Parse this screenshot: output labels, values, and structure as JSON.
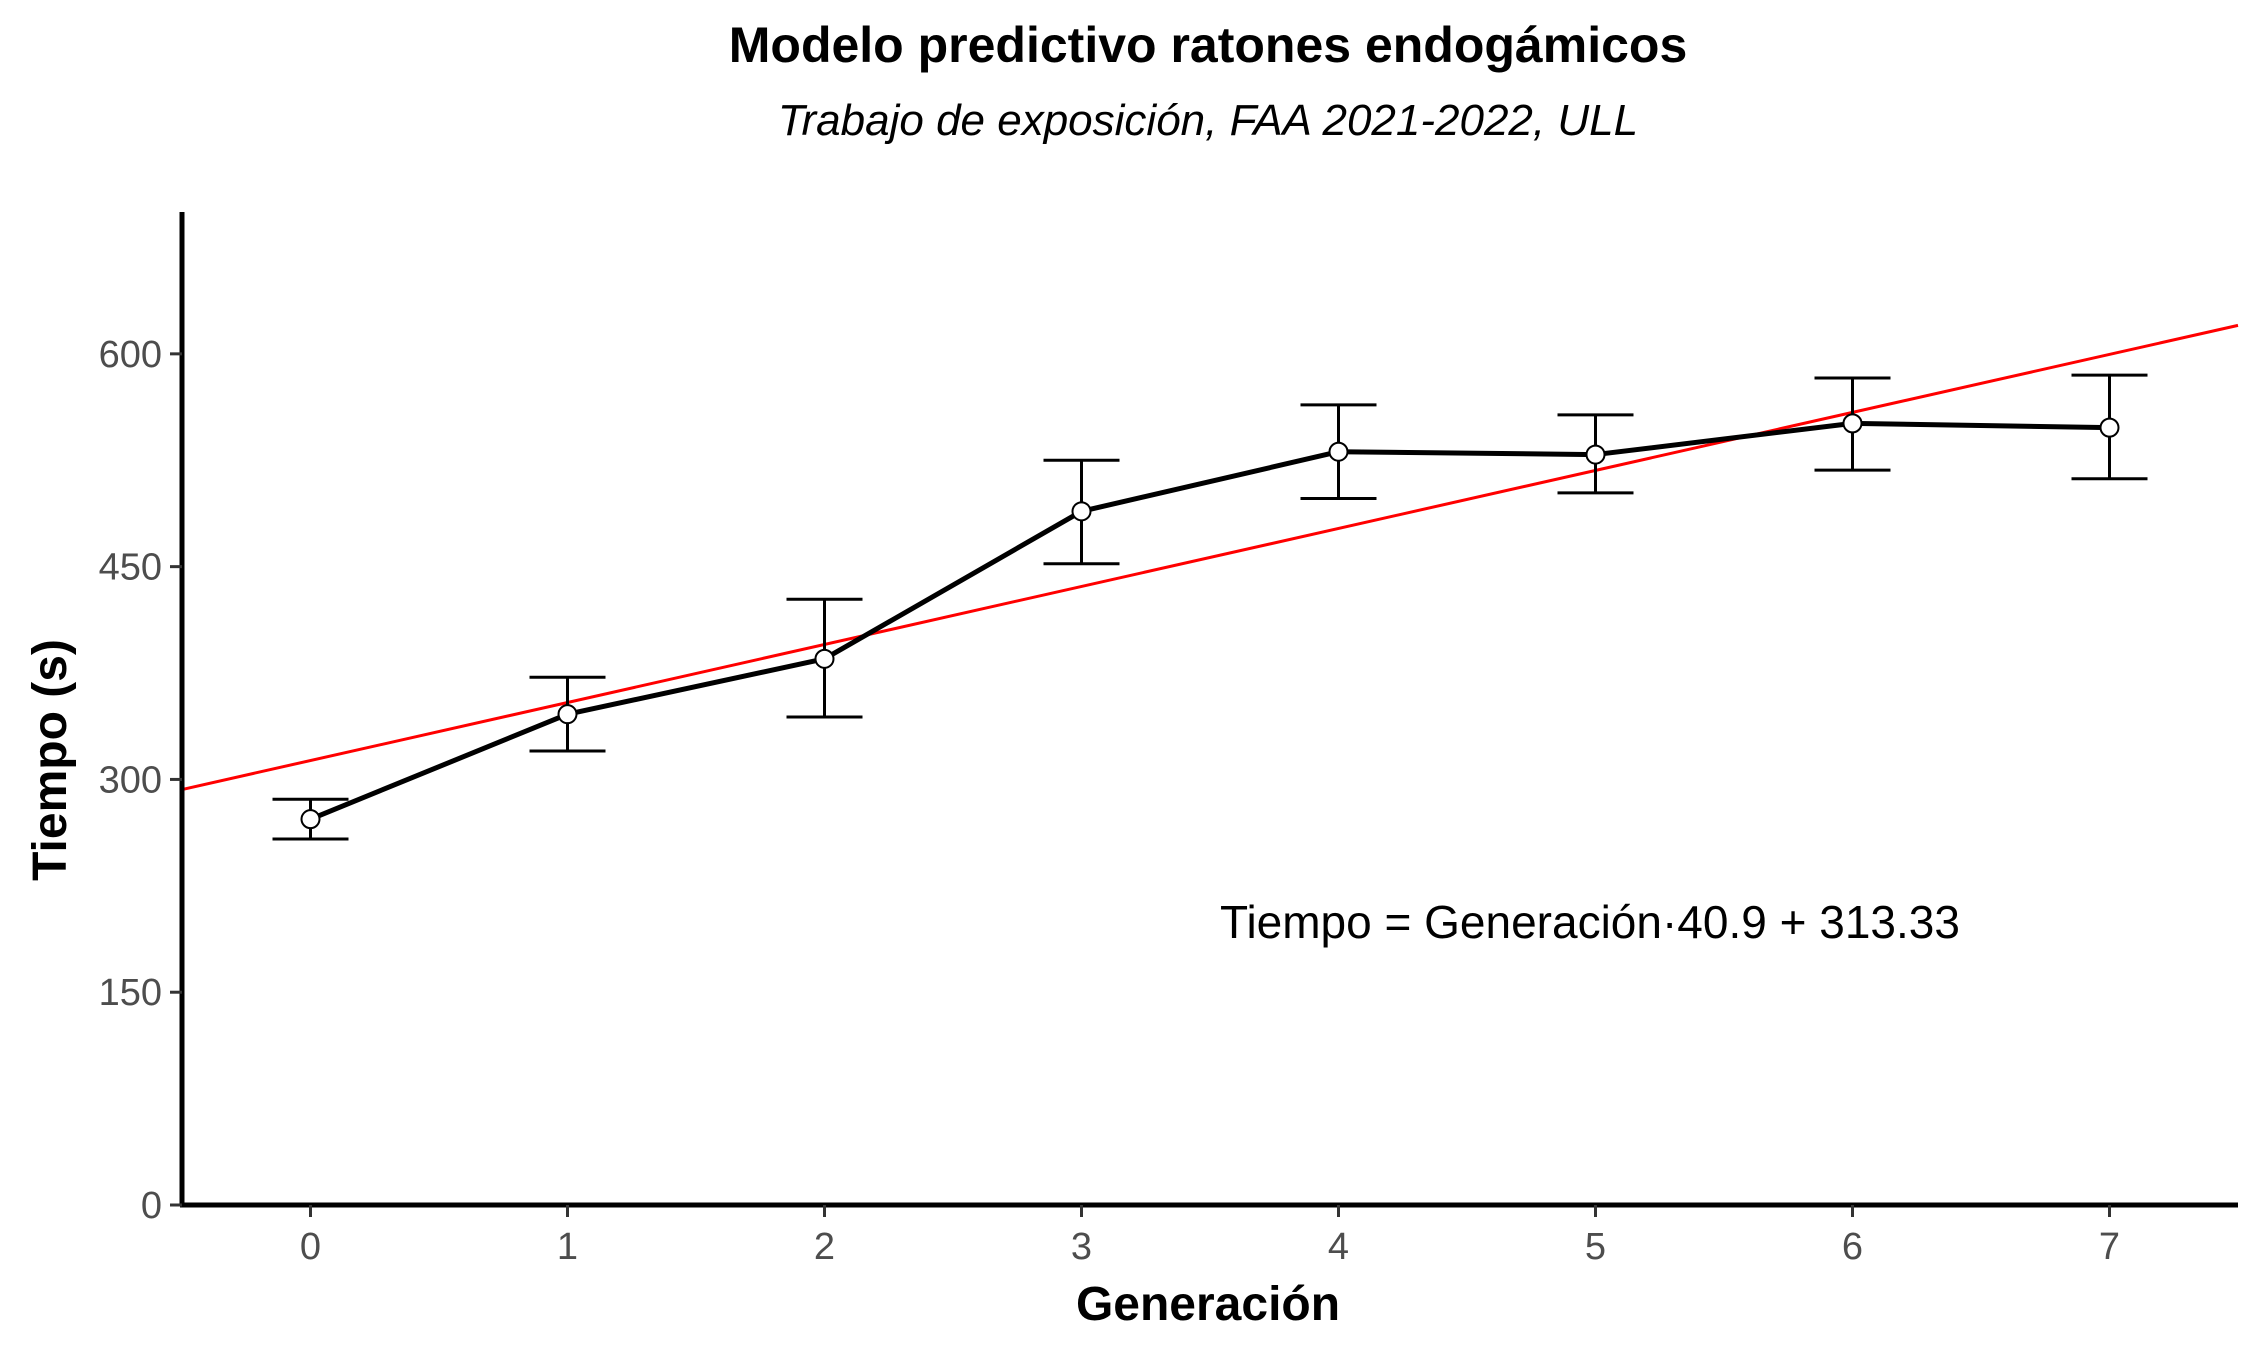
{
  "chart_data": {
    "type": "line",
    "title": "Modelo predictivo ratones endogámicos",
    "subtitle": "Trabajo de exposición, FAA 2021-2022, ULL",
    "xlabel": "Generación",
    "ylabel": "Tiempo (s)",
    "x": [
      0,
      1,
      2,
      3,
      4,
      5,
      6,
      7
    ],
    "xlim": [
      -0.5,
      7.5
    ],
    "ylim": [
      0,
      700
    ],
    "xticks": [
      "0",
      "1",
      "2",
      "3",
      "4",
      "5",
      "6",
      "7"
    ],
    "yticks": [
      "0",
      "150",
      "300",
      "450",
      "600"
    ],
    "series": [
      {
        "values": [
          272,
          346,
          385,
          489,
          531,
          529,
          551,
          548
        ],
        "error_low": [
          258,
          320,
          344,
          452,
          498,
          502,
          518,
          512
        ],
        "error_high": [
          286,
          372,
          427,
          525,
          564,
          557,
          583,
          585
        ],
        "color": "#000000"
      }
    ],
    "regression": {
      "slope": 40.9,
      "intercept": 313.33,
      "color": "#ff0000"
    },
    "annotation": "Tiempo = Generación·40.9 + 313.33",
    "grid": false,
    "legend": "none"
  }
}
